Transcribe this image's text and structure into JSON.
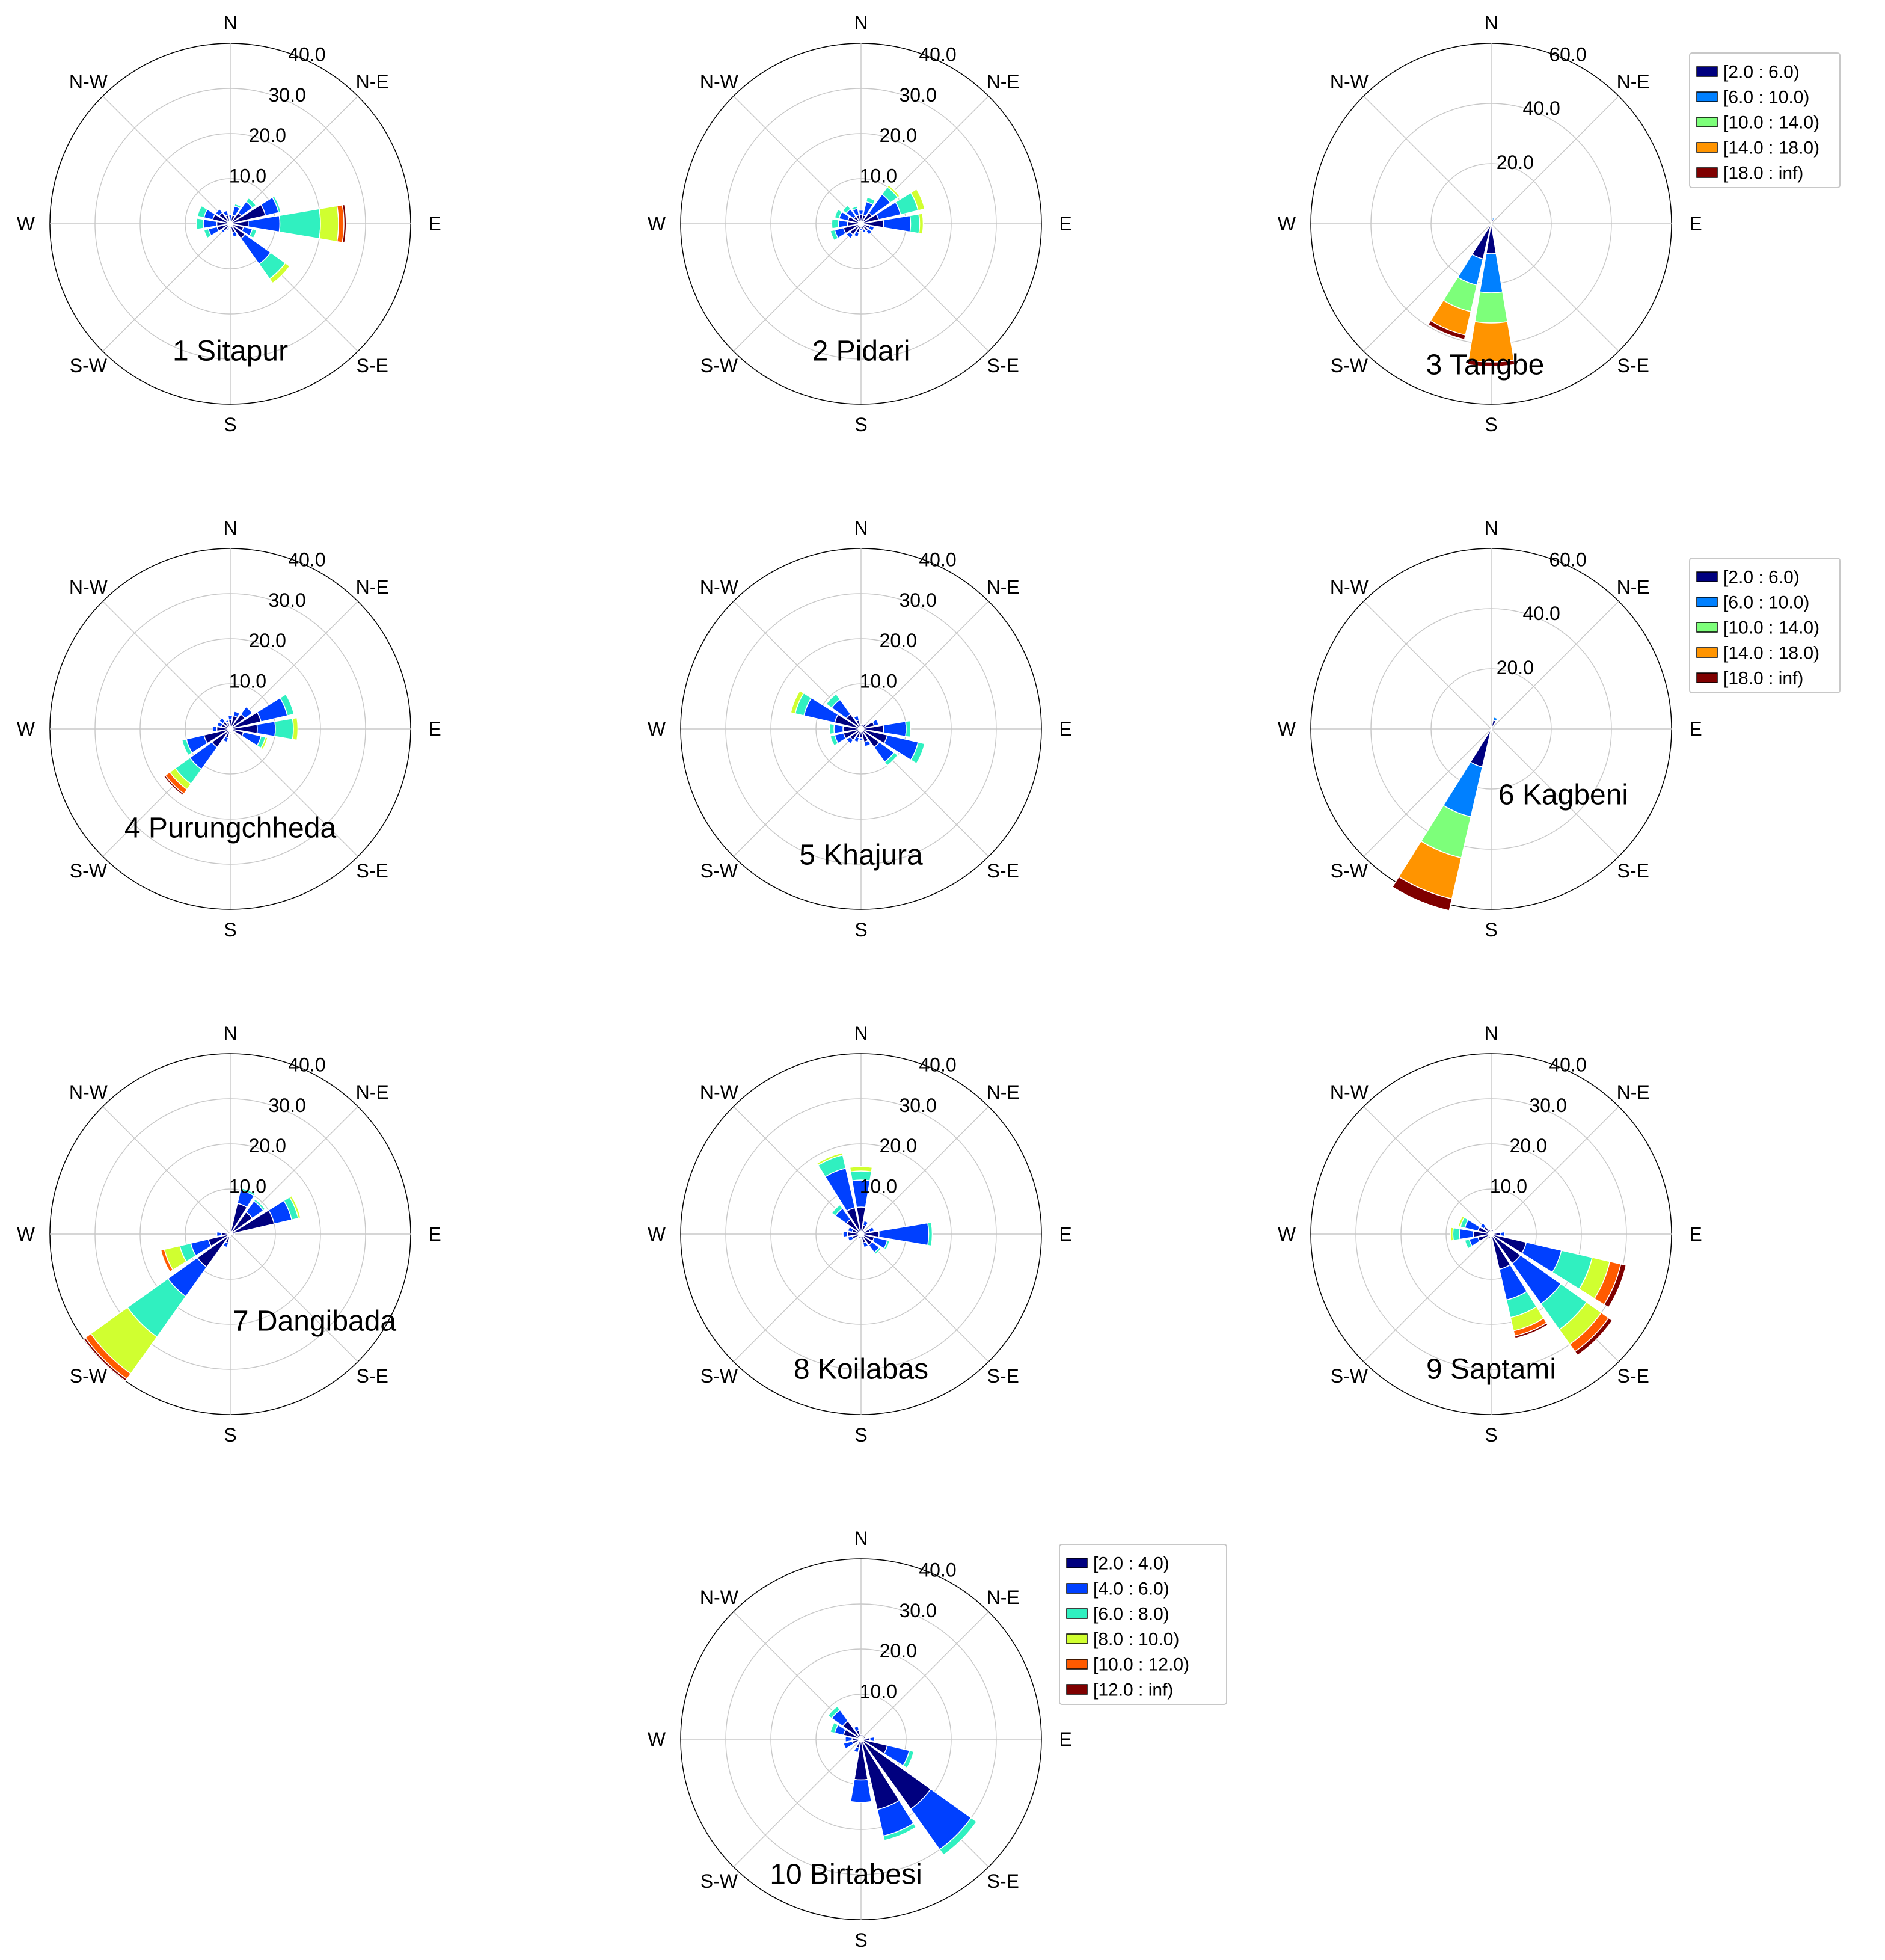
{
  "directions": [
    "N",
    "N-E",
    "E",
    "S-E",
    "S",
    "S-W",
    "W",
    "N-W"
  ],
  "legends": {
    "wind6": {
      "bins": [
        "[2.0 : 6.0)",
        "[6.0 : 10.0)",
        "[10.0 : 14.0)",
        "[14.0 : 18.0)",
        "[18.0 : inf)"
      ],
      "colors": [
        "#00007f",
        "#0080ff",
        "#7dff7a",
        "#ff9400",
        "#7f0000"
      ]
    },
    "wind4": {
      "bins": [
        "[2.0 : 4.0)",
        "[4.0 : 6.0)",
        "[6.0 : 8.0)",
        "[8.0 : 10.0)",
        "[10.0 : 12.0)",
        "[12.0 : inf)"
      ],
      "colors": [
        "#00007f",
        "#0040ff",
        "#30f0c0",
        "#d0ff30",
        "#ff5a00",
        "#7f0000"
      ]
    }
  },
  "chart_data": [
    {
      "type": "windrose",
      "title": "1 Sitapur",
      "rmax": 40,
      "rticks": [
        "10.0",
        "20.0",
        "30.0",
        "40.0"
      ],
      "legend": "wind4",
      "petals": [
        {
          "dir": 0,
          "v": [
            0.5,
            1.5
          ]
        },
        {
          "dir": 22.5,
          "v": [
            2,
            2,
            0.5
          ]
        },
        {
          "dir": 45,
          "v": [
            3,
            3,
            1
          ]
        },
        {
          "dir": 67.5,
          "v": [
            8,
            3,
            0.5
          ]
        },
        {
          "dir": 90,
          "v": [
            4,
            7,
            9,
            4,
            1.2,
            0.5
          ]
        },
        {
          "dir": 112.5,
          "v": [
            3,
            2,
            1
          ]
        },
        {
          "dir": 135,
          "v": [
            4,
            7,
            4,
            1.2
          ]
        },
        {
          "dir": 157.5,
          "v": [
            2,
            1
          ]
        },
        {
          "dir": 180,
          "v": [
            0.5,
            0.5
          ]
        },
        {
          "dir": 202.5,
          "v": [
            1,
            0.5
          ]
        },
        {
          "dir": 225,
          "v": [
            2,
            0.5
          ]
        },
        {
          "dir": 247.5,
          "v": [
            3,
            2,
            1
          ]
        },
        {
          "dir": 270,
          "v": [
            3,
            3,
            1.5
          ]
        },
        {
          "dir": 292.5,
          "v": [
            4,
            2,
            1.5
          ]
        },
        {
          "dir": 315,
          "v": [
            3,
            1
          ]
        },
        {
          "dir": 337.5,
          "v": [
            2,
            1
          ]
        }
      ]
    },
    {
      "type": "windrose",
      "title": "2 Pidari",
      "rmax": 40,
      "rticks": [
        "10.0",
        "20.0",
        "30.0",
        "40.0"
      ],
      "legend": "wind4",
      "petals": [
        {
          "dir": 0,
          "v": [
            2,
            1
          ]
        },
        {
          "dir": 22.5,
          "v": [
            2,
            3,
            1
          ]
        },
        {
          "dir": 45,
          "v": [
            3,
            5,
            2,
            0.5
          ]
        },
        {
          "dir": 67.5,
          "v": [
            4,
            5,
            4,
            1.5
          ]
        },
        {
          "dir": 90,
          "v": [
            5,
            6,
            2,
            0.8
          ]
        },
        {
          "dir": 112.5,
          "v": [
            2,
            1
          ]
        },
        {
          "dir": 135,
          "v": [
            2,
            1
          ]
        },
        {
          "dir": 157.5,
          "v": [
            1.5,
            0.5
          ]
        },
        {
          "dir": 180,
          "v": [
            1,
            0.5
          ]
        },
        {
          "dir": 202.5,
          "v": [
            2,
            1
          ]
        },
        {
          "dir": 225,
          "v": [
            3,
            1
          ]
        },
        {
          "dir": 247.5,
          "v": [
            4,
            2,
            1
          ]
        },
        {
          "dir": 270,
          "v": [
            3,
            2,
            1.5
          ]
        },
        {
          "dir": 292.5,
          "v": [
            3,
            2,
            1
          ]
        },
        {
          "dir": 315,
          "v": [
            2,
            2,
            1
          ]
        },
        {
          "dir": 337.5,
          "v": [
            2,
            1.5,
            0.5
          ]
        }
      ]
    },
    {
      "type": "windrose",
      "title": "3 Tangbe",
      "rmax": 60,
      "rticks": [
        "20.0",
        "40.0",
        "60.0"
      ],
      "legend": "wind6",
      "petals": [
        {
          "dir": 0,
          "v": [
            1
          ]
        },
        {
          "dir": 22.5,
          "v": [
            1.5,
            0.5
          ]
        },
        {
          "dir": 45,
          "v": [
            0.5
          ]
        },
        {
          "dir": 157.5,
          "v": [
            1
          ]
        },
        {
          "dir": 180,
          "v": [
            10,
            13,
            10,
            13,
            1.5
          ]
        },
        {
          "dir": 202.5,
          "v": [
            12,
            9,
            9,
            8,
            1.5
          ]
        },
        {
          "dir": 225,
          "v": [
            1
          ]
        }
      ]
    },
    {
      "type": "windrose",
      "title": "4 Purungchheda",
      "rmax": 40,
      "rticks": [
        "10.0",
        "20.0",
        "30.0",
        "40.0"
      ],
      "legend": "wind4",
      "petals": [
        {
          "dir": 0,
          "v": [
            2,
            1
          ]
        },
        {
          "dir": 22.5,
          "v": [
            3,
            1
          ]
        },
        {
          "dir": 45,
          "v": [
            4,
            2
          ]
        },
        {
          "dir": 67.5,
          "v": [
            7,
            6,
            1.5
          ]
        },
        {
          "dir": 90,
          "v": [
            6,
            4,
            4,
            1
          ]
        },
        {
          "dir": 112.5,
          "v": [
            3,
            4,
            1,
            0.5
          ]
        },
        {
          "dir": 135,
          "v": [
            1
          ]
        },
        {
          "dir": 180,
          "v": [
            1
          ]
        },
        {
          "dir": 202.5,
          "v": [
            2,
            1
          ]
        },
        {
          "dir": 225,
          "v": [
            5,
            6,
            4,
            1.5,
            1.2,
            0.4
          ]
        },
        {
          "dir": 247.5,
          "v": [
            6,
            4,
            1
          ]
        },
        {
          "dir": 270,
          "v": [
            3,
            1
          ]
        },
        {
          "dir": 292.5,
          "v": [
            2,
            1
          ]
        },
        {
          "dir": 315,
          "v": [
            2,
            1
          ]
        },
        {
          "dir": 337.5,
          "v": [
            1.5,
            0.5
          ]
        }
      ]
    },
    {
      "type": "windrose",
      "title": "5 Khajura",
      "rmax": 40,
      "rticks": [
        "10.0",
        "20.0",
        "30.0",
        "40.0"
      ],
      "legend": "wind4",
      "petals": [
        {
          "dir": 0,
          "v": [
            1
          ]
        },
        {
          "dir": 22.5,
          "v": [
            1
          ]
        },
        {
          "dir": 45,
          "v": [
            1.5
          ]
        },
        {
          "dir": 67.5,
          "v": [
            3,
            1
          ]
        },
        {
          "dir": 90,
          "v": [
            5,
            5,
            1
          ]
        },
        {
          "dir": 112.5,
          "v": [
            6,
            7,
            1.5
          ]
        },
        {
          "dir": 135,
          "v": [
            5,
            4,
            1
          ]
        },
        {
          "dir": 157.5,
          "v": [
            3,
            1
          ]
        },
        {
          "dir": 180,
          "v": [
            2,
            0.5
          ]
        },
        {
          "dir": 202.5,
          "v": [
            2,
            1
          ]
        },
        {
          "dir": 225,
          "v": [
            3,
            1
          ]
        },
        {
          "dir": 247.5,
          "v": [
            4,
            2,
            1
          ]
        },
        {
          "dir": 270,
          "v": [
            4,
            2,
            1
          ]
        },
        {
          "dir": 292.5,
          "v": [
            6,
            7,
            2,
            1
          ]
        },
        {
          "dir": 315,
          "v": [
            4,
            4,
            1.5
          ]
        },
        {
          "dir": 337.5,
          "v": [
            2,
            1
          ]
        }
      ]
    },
    {
      "type": "windrose",
      "title": "6 Kagbeni",
      "rmax": 60,
      "rticks": [
        "20.0",
        "40.0",
        "60.0"
      ],
      "legend": "wind6",
      "petals": [
        {
          "dir": 0,
          "v": [
            1
          ]
        },
        {
          "dir": 22.5,
          "v": [
            3,
            1
          ]
        },
        {
          "dir": 45,
          "v": [
            0.5
          ]
        },
        {
          "dir": 157.5,
          "v": [
            1
          ]
        },
        {
          "dir": 180,
          "v": [
            1
          ]
        },
        {
          "dir": 202.5,
          "v": [
            13,
            17,
            14,
            14,
            4
          ]
        },
        {
          "dir": 225,
          "v": [
            1
          ]
        }
      ]
    },
    {
      "type": "windrose",
      "title": "7 Dangibada",
      "rmax": 40,
      "rticks": [
        "10.0",
        "20.0",
        "30.0",
        "40.0"
      ],
      "legend": "wind4",
      "petals": [
        {
          "dir": 22.5,
          "v": [
            7,
            3,
            0.5
          ]
        },
        {
          "dir": 45,
          "v": [
            6,
            3,
            0.5
          ]
        },
        {
          "dir": 67.5,
          "v": [
            10,
            4,
            1.5,
            0.5
          ]
        },
        {
          "dir": 90,
          "v": [
            1
          ]
        },
        {
          "dir": 180,
          "v": [
            1
          ]
        },
        {
          "dir": 202.5,
          "v": [
            2,
            1
          ]
        },
        {
          "dir": 225,
          "v": [
            9,
            8,
            11,
            10,
            1.5,
            0.5
          ]
        },
        {
          "dir": 247.5,
          "v": [
            5,
            4,
            2.5,
            3.5,
            0.8
          ]
        },
        {
          "dir": 270,
          "v": [
            2,
            1
          ]
        }
      ]
    },
    {
      "type": "windrose",
      "title": "8 Koilabas",
      "rmax": 40,
      "rticks": [
        "10.0",
        "20.0",
        "30.0",
        "40.0"
      ],
      "legend": "wind4",
      "petals": [
        {
          "dir": 0,
          "v": [
            6,
            6,
            2,
            1
          ]
        },
        {
          "dir": 22.5,
          "v": [
            2,
            1
          ]
        },
        {
          "dir": 45,
          "v": [
            1
          ]
        },
        {
          "dir": 67.5,
          "v": [
            2,
            1
          ]
        },
        {
          "dir": 90,
          "v": [
            4,
            11,
            0.8
          ]
        },
        {
          "dir": 112.5,
          "v": [
            3,
            3,
            0.5
          ]
        },
        {
          "dir": 135,
          "v": [
            3,
            2,
            0.5
          ]
        },
        {
          "dir": 157.5,
          "v": [
            2,
            1
          ]
        },
        {
          "dir": 180,
          "v": [
            1
          ]
        },
        {
          "dir": 202.5,
          "v": [
            1
          ]
        },
        {
          "dir": 225,
          "v": [
            1
          ]
        },
        {
          "dir": 247.5,
          "v": [
            2,
            1
          ]
        },
        {
          "dir": 270,
          "v": [
            3,
            1
          ]
        },
        {
          "dir": 292.5,
          "v": [
            2,
            1
          ]
        },
        {
          "dir": 315,
          "v": [
            4,
            3,
            1
          ]
        },
        {
          "dir": 337.5,
          "v": [
            6,
            9,
            3,
            0.5
          ]
        }
      ]
    },
    {
      "type": "windrose",
      "title": "9 Saptami",
      "rmax": 40,
      "rticks": [
        "10.0",
        "20.0",
        "30.0",
        "40.0"
      ],
      "legend": "wind4",
      "petals": [
        {
          "dir": 0,
          "v": [
            1
          ]
        },
        {
          "dir": 22.5,
          "v": [
            1
          ]
        },
        {
          "dir": 45,
          "v": [
            1
          ]
        },
        {
          "dir": 90,
          "v": [
            2,
            1
          ]
        },
        {
          "dir": 112.5,
          "v": [
            8,
            8,
            7,
            4,
            2.5,
            1.2
          ]
        },
        {
          "dir": 135,
          "v": [
            8,
            11,
            7,
            4,
            2,
            1
          ]
        },
        {
          "dir": 157.5,
          "v": [
            8,
            7,
            4,
            3,
            1.2,
            0.5
          ]
        },
        {
          "dir": 180,
          "v": [
            1
          ]
        },
        {
          "dir": 202.5,
          "v": [
            1
          ]
        },
        {
          "dir": 247.5,
          "v": [
            3,
            2,
            1
          ]
        },
        {
          "dir": 270,
          "v": [
            4,
            3,
            1.5,
            0.5
          ]
        },
        {
          "dir": 292.5,
          "v": [
            3,
            3,
            1,
            0.5
          ]
        },
        {
          "dir": 315,
          "v": [
            2,
            1
          ]
        },
        {
          "dir": 337.5,
          "v": [
            1
          ]
        }
      ]
    },
    {
      "type": "windrose",
      "title": "10 Birtabesi",
      "rmax": 40,
      "rticks": [
        "10.0",
        "20.0",
        "30.0",
        "40.0"
      ],
      "legend": "wind4",
      "petals": [
        {
          "dir": 0,
          "v": [
            1
          ]
        },
        {
          "dir": 22.5,
          "v": [
            1
          ]
        },
        {
          "dir": 67.5,
          "v": [
            1
          ]
        },
        {
          "dir": 90,
          "v": [
            2,
            1
          ]
        },
        {
          "dir": 112.5,
          "v": [
            6,
            5,
            1
          ]
        },
        {
          "dir": 135,
          "v": [
            19,
            11,
            1.5
          ]
        },
        {
          "dir": 157.5,
          "v": [
            16,
            6,
            1
          ]
        },
        {
          "dir": 180,
          "v": [
            9,
            5
          ]
        },
        {
          "dir": 202.5,
          "v": [
            2,
            1
          ]
        },
        {
          "dir": 225,
          "v": [
            1
          ]
        },
        {
          "dir": 247.5,
          "v": [
            2,
            2
          ]
        },
        {
          "dir": 270,
          "v": [
            2,
            1.5
          ]
        },
        {
          "dir": 292.5,
          "v": [
            4,
            2,
            1
          ]
        },
        {
          "dir": 315,
          "v": [
            5,
            3,
            1
          ]
        },
        {
          "dir": 337.5,
          "v": [
            2,
            1
          ]
        }
      ]
    }
  ]
}
